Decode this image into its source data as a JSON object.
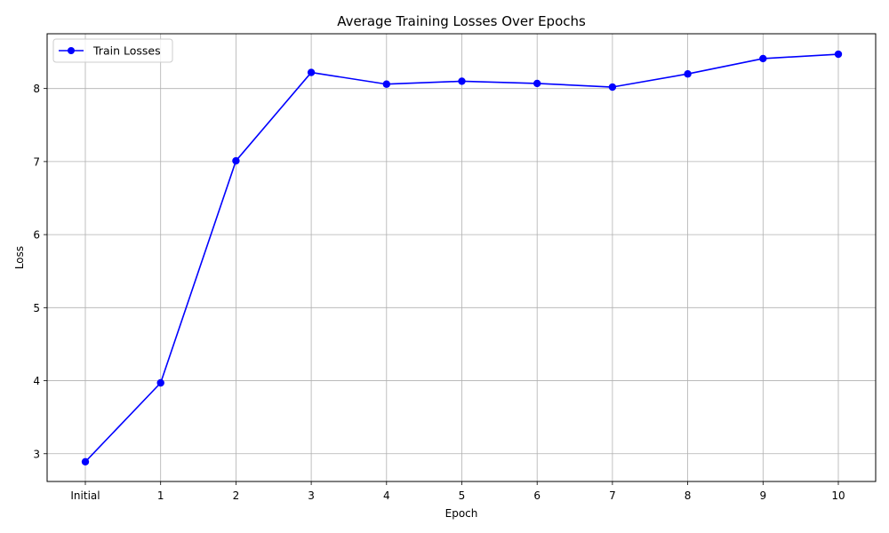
{
  "chart_data": {
    "type": "line",
    "title": "Average Training Losses Over Epochs",
    "xlabel": "Epoch",
    "ylabel": "Loss",
    "categories": [
      "Initial",
      "1",
      "2",
      "3",
      "4",
      "5",
      "6",
      "7",
      "8",
      "9",
      "10"
    ],
    "series": [
      {
        "name": "Train Losses",
        "color": "#0000ff",
        "marker": "circle",
        "values": [
          2.89,
          3.97,
          7.01,
          8.22,
          8.06,
          8.1,
          8.07,
          8.02,
          8.2,
          8.41,
          8.47
        ]
      }
    ],
    "ylim": [
      2.62,
      8.75
    ],
    "yticks": [
      3,
      4,
      5,
      6,
      7,
      8
    ],
    "grid": true,
    "legend_position": "top-left"
  }
}
